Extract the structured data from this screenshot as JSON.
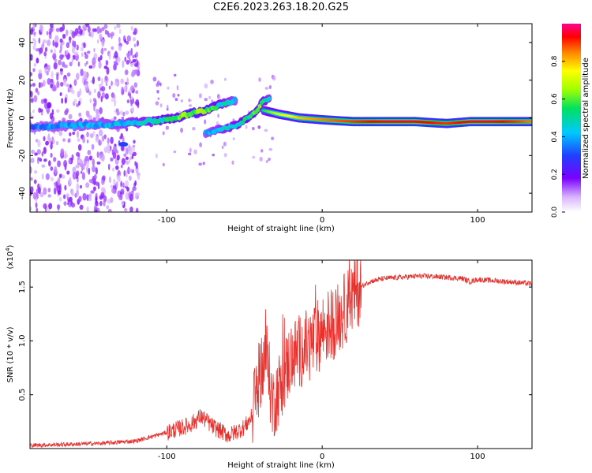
{
  "title": "C2E6.2023.263.18.20.G25",
  "chart_data": [
    {
      "type": "heatmap",
      "xlabel": "Height of straight line (km)",
      "ylabel": "Frequency (Hz)",
      "xlim": [
        -188,
        135
      ],
      "ylim": [
        -50,
        50
      ],
      "x_ticks": [
        -100,
        0,
        100
      ],
      "x_tick_labels": [
        "-100",
        "0",
        "100"
      ],
      "y_ticks": [
        -40,
        -20,
        0,
        20,
        40
      ],
      "y_tick_labels": [
        "-40",
        "-20",
        "0",
        "20",
        "40"
      ],
      "colorbar": {
        "label": "Normalized spectral amplitude",
        "ticks": [
          0.0,
          0.2,
          0.4,
          0.6,
          0.8
        ],
        "tick_labels": [
          "0.0",
          "0.2",
          "0.4",
          "0.6",
          "0.8"
        ],
        "range": [
          0,
          1
        ]
      },
      "ridge_main": {
        "x": [
          -188,
          -160,
          -140,
          -120,
          -105,
          -95,
          -85,
          -75,
          -65,
          -55
        ],
        "freq": [
          -5,
          -4,
          -3.5,
          -2.5,
          -1.5,
          0,
          2,
          4,
          7,
          10
        ],
        "amp": [
          0.35,
          0.4,
          0.4,
          0.45,
          0.5,
          0.55,
          0.65,
          0.6,
          0.5,
          0.4
        ]
      },
      "ridge_secondary": {
        "x": [
          -75,
          -65,
          -55,
          -48,
          -42,
          -38,
          -34
        ],
        "freq": [
          -8,
          -6,
          -4,
          0,
          4,
          9,
          10
        ],
        "amp": [
          0.4,
          0.45,
          0.5,
          0.55,
          0.6,
          0.55,
          0.45
        ]
      },
      "ridge_flat": {
        "x": [
          -38,
          -28,
          -15,
          0,
          20,
          40,
          60,
          80,
          95,
          110,
          125,
          135
        ],
        "freq": [
          4,
          2,
          0,
          -1,
          -2,
          -2,
          -2,
          -3,
          -2,
          -2,
          -2,
          -2
        ],
        "amp": [
          0.55,
          0.7,
          0.8,
          0.85,
          0.9,
          0.95,
          0.95,
          0.9,
          0.95,
          0.95,
          0.9,
          0.85
        ]
      },
      "isolated_blob": {
        "x": -128,
        "freq": -14,
        "amp": 0.3
      }
    },
    {
      "type": "line",
      "xlabel": "Height of straight line (km)",
      "ylabel": "SNR (10 * v/v)",
      "scale_label": "(x10",
      "scale_exponent": "4",
      "xlim": [
        -188,
        135
      ],
      "ylim": [
        0,
        1.75
      ],
      "x_ticks": [
        -100,
        0,
        100
      ],
      "x_tick_labels": [
        "-100",
        "0",
        "100"
      ],
      "y_ticks": [
        0.5,
        1.0,
        1.5
      ],
      "y_tick_labels": [
        "0.5",
        "1.0",
        "1.5"
      ],
      "color": "#e8302c",
      "series": [
        {
          "x": [
            -188,
            -160,
            -140,
            -120,
            -100,
            -85,
            -78,
            -70,
            -60,
            -50,
            -45,
            -40,
            -36,
            -32,
            -28,
            -24,
            -20,
            -15,
            -10,
            -5,
            0,
            5,
            10,
            15,
            20,
            25,
            30,
            40,
            50,
            60,
            70,
            80,
            90,
            95,
            100,
            110,
            120,
            135
          ],
          "y": [
            0.03,
            0.04,
            0.05,
            0.07,
            0.15,
            0.22,
            0.3,
            0.2,
            0.12,
            0.2,
            0.3,
            0.7,
            0.9,
            0.4,
            0.55,
            0.7,
            0.85,
            0.9,
            0.95,
            1.0,
            1.1,
            1.15,
            1.2,
            1.3,
            1.42,
            1.5,
            1.55,
            1.58,
            1.59,
            1.6,
            1.6,
            1.59,
            1.58,
            1.55,
            1.57,
            1.56,
            1.55,
            1.53
          ]
        }
      ]
    }
  ]
}
